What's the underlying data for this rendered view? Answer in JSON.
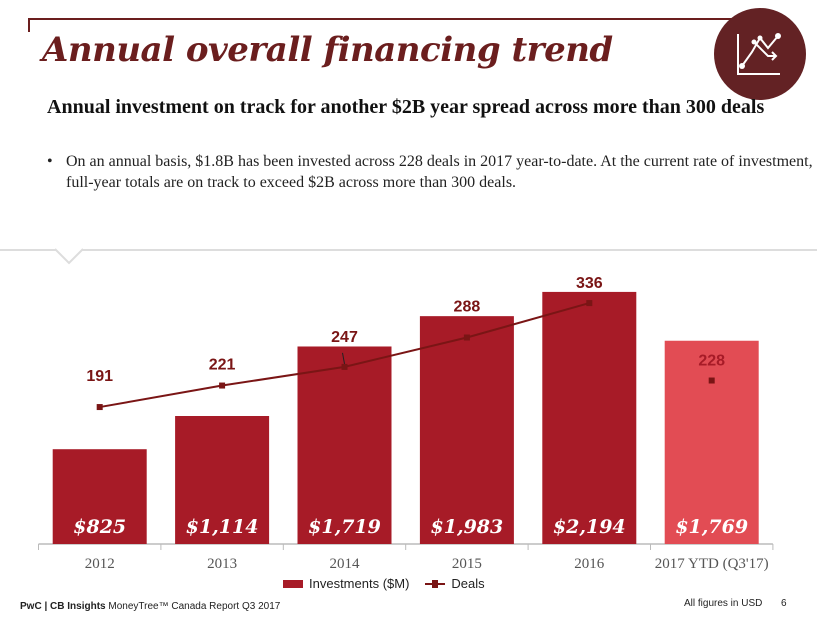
{
  "header": {
    "title": "Annual overall financing trend",
    "icon": "trend-chart-icon",
    "accent_color": "#6b1e1e"
  },
  "subtitle": "Annual investment on track for another $2B year spread across more than 300 deals",
  "bullet": "On an annual basis, $1.8B has been invested across 228 deals in 2017 year-to-date. At the current rate of investment, full-year totals are on track to exceed $2B across more than 300 deals.",
  "chart_data": {
    "type": "bar",
    "categories": [
      "2012",
      "2013",
      "2014",
      "2015",
      "2016",
      "2017 YTD (Q3'17)"
    ],
    "series": [
      {
        "name": "Investments ($M)",
        "type": "bar",
        "values": [
          825,
          1114,
          1719,
          1983,
          2194,
          1769
        ],
        "labels": [
          "$825",
          "$1,114",
          "$1,719",
          "$1,983",
          "$2,194",
          "$1,769"
        ],
        "colors": [
          "#a71b27",
          "#a71b27",
          "#a71b27",
          "#a71b27",
          "#a71b27",
          "#e24c54"
        ]
      },
      {
        "name": "Deals",
        "type": "line",
        "values": [
          191,
          221,
          247,
          288,
          336,
          228
        ],
        "color": "#7a1515"
      }
    ],
    "legend": {
      "position": "bottom",
      "items": [
        "Investments ($M)",
        "Deals"
      ]
    },
    "grid": false
  },
  "footer": {
    "brand": "PwC | CB Insights",
    "report": "MoneyTree™ Canada Report Q3 2017",
    "note": "All figures in USD",
    "page": "6"
  }
}
